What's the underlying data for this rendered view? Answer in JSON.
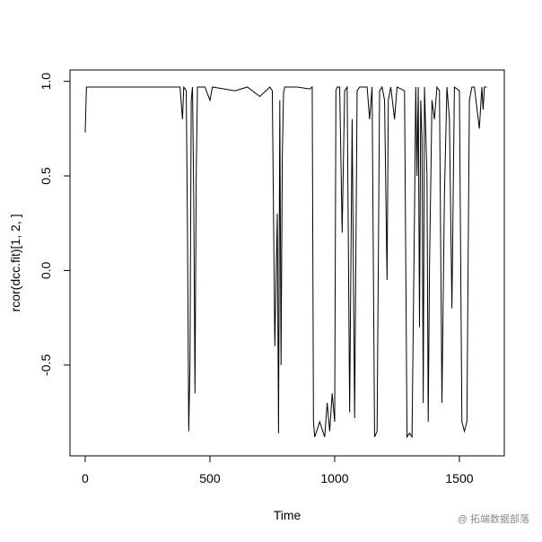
{
  "chart_data": {
    "type": "line",
    "xlabel": "Time",
    "ylabel": "rcor(dcc.fit)[1, 2, ]",
    "watermark": "@ 拓端数据部落",
    "color": "#000000",
    "xlim": [
      -61,
      1680
    ],
    "ylim": [
      -0.98,
      1.06
    ],
    "xticks": [
      0,
      500,
      1000,
      1500
    ],
    "yticks": [
      -0.5,
      {
        "value": 0,
        "label": "0.0"
      },
      0.5,
      {
        "value": 1,
        "label": "1.0"
      }
    ],
    "series": [
      {
        "name": "rcor",
        "x": [
          0,
          5,
          100,
          380,
          390,
          395,
          405,
          410,
          415,
          420,
          425,
          430,
          435,
          440,
          445,
          450,
          480,
          500,
          510,
          600,
          650,
          700,
          740,
          750,
          760,
          770,
          775,
          780,
          785,
          790,
          795,
          800,
          850,
          900,
          910,
          915,
          920,
          940,
          960,
          970,
          980,
          990,
          1000,
          1005,
          1010,
          1020,
          1030,
          1040,
          1050,
          1060,
          1070,
          1080,
          1090,
          1100,
          1130,
          1140,
          1150,
          1160,
          1170,
          1180,
          1190,
          1200,
          1210,
          1215,
          1225,
          1240,
          1250,
          1280,
          1290,
          1300,
          1310,
          1320,
          1325,
          1330,
          1335,
          1340,
          1345,
          1350,
          1355,
          1360,
          1370,
          1375,
          1380,
          1390,
          1400,
          1410,
          1420,
          1430,
          1440,
          1450,
          1460,
          1470,
          1480,
          1500,
          1510,
          1520,
          1530,
          1540,
          1550,
          1560,
          1580,
          1590,
          1595,
          1600,
          1610
        ],
        "values": [
          0.73,
          0.97,
          0.97,
          0.97,
          0.8,
          0.97,
          0.95,
          0.2,
          -0.85,
          -0.5,
          0.9,
          0.97,
          0.4,
          -0.65,
          0.5,
          0.97,
          0.97,
          0.9,
          0.97,
          0.95,
          0.97,
          0.92,
          0.97,
          0.95,
          -0.4,
          0.3,
          -0.86,
          0.9,
          -0.5,
          0.6,
          0.94,
          0.97,
          0.97,
          0.96,
          0.97,
          -0.8,
          -0.88,
          -0.8,
          -0.88,
          -0.7,
          -0.85,
          -0.65,
          -0.8,
          0.95,
          0.97,
          0.97,
          0.2,
          0.95,
          0.97,
          -0.75,
          0.8,
          -0.78,
          0.95,
          0.97,
          0.97,
          0.8,
          0.97,
          -0.88,
          -0.85,
          0.95,
          0.97,
          0.9,
          -0.05,
          0.9,
          0.97,
          0.8,
          0.97,
          0.95,
          -0.88,
          -0.86,
          -0.88,
          0.3,
          0.97,
          0.5,
          0.97,
          -0.3,
          0.9,
          0.7,
          -0.7,
          0.97,
          0.5,
          -0.8,
          0.0,
          0.9,
          0.8,
          0.97,
          0.95,
          -0.7,
          0.4,
          0.97,
          0.8,
          -0.2,
          0.97,
          0.95,
          -0.8,
          -0.85,
          -0.8,
          0.9,
          0.97,
          0.97,
          0.75,
          0.97,
          0.85,
          0.97,
          0.97
        ]
      }
    ]
  }
}
